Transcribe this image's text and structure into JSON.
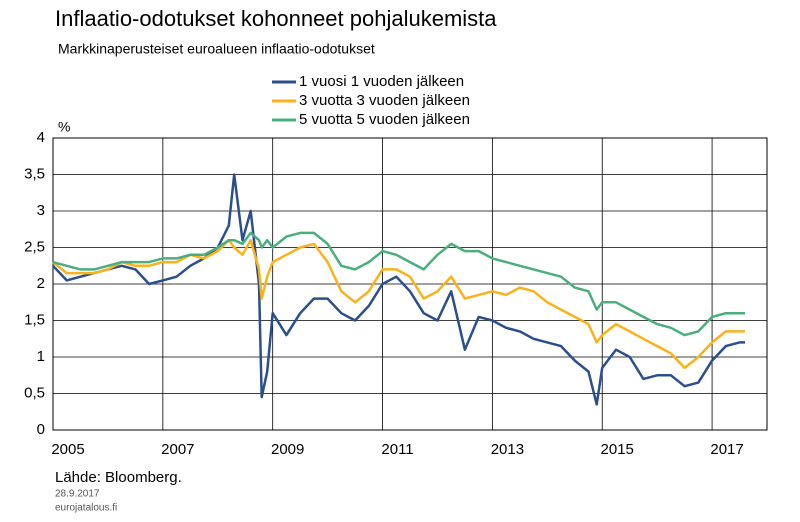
{
  "chart_data": {
    "type": "line",
    "title": "Inflaatio-odotukset kohonneet pohjalukemista",
    "subtitle": "Markkinaperusteiset euroalueen inflaatio-odotukset",
    "y_label": "%",
    "source": "Lähde: Bloomberg.",
    "date": "28.9.2017",
    "site": "eurojatalous.fi",
    "grid": true,
    "xlim": [
      2005,
      2018
    ],
    "xticks": [
      2005,
      2007,
      2009,
      2011,
      2013,
      2015,
      2017
    ],
    "ylim": [
      0,
      4
    ],
    "yticks": [
      0,
      {
        "value": 0.5,
        "label": "0,5"
      },
      1,
      {
        "value": 1.5,
        "label": "1,5"
      },
      2,
      {
        "value": 2.5,
        "label": "2,5"
      },
      3,
      {
        "value": 3.5,
        "label": "3,5"
      },
      4
    ],
    "x": [
      2005,
      2005.25,
      2005.5,
      2005.75,
      2006,
      2006.25,
      2006.5,
      2006.75,
      2007,
      2007.25,
      2007.5,
      2007.75,
      2008,
      2008.2,
      2008.3,
      2008.45,
      2008.6,
      2008.75,
      2008.8,
      2008.9,
      2009,
      2009.25,
      2009.5,
      2009.75,
      2010,
      2010.25,
      2010.5,
      2010.75,
      2011,
      2011.25,
      2011.5,
      2011.75,
      2012,
      2012.25,
      2012.5,
      2012.75,
      2013,
      2013.25,
      2013.5,
      2013.75,
      2014,
      2014.25,
      2014.5,
      2014.75,
      2014.9,
      2015,
      2015.25,
      2015.5,
      2015.75,
      2016,
      2016.25,
      2016.5,
      2016.75,
      2017,
      2017.25,
      2017.5,
      2017.6
    ],
    "series": [
      {
        "name": "1 vuosi 1 vuoden jälkeen",
        "color": "#2b4e8c",
        "values": [
          2.25,
          2.05,
          2.1,
          2.15,
          2.2,
          2.25,
          2.2,
          2.0,
          2.05,
          2.1,
          2.25,
          2.35,
          2.5,
          2.8,
          3.5,
          2.6,
          3.0,
          2.0,
          0.45,
          0.8,
          1.6,
          1.3,
          1.6,
          1.8,
          1.8,
          1.6,
          1.5,
          1.7,
          2.0,
          2.1,
          1.9,
          1.6,
          1.5,
          1.9,
          1.1,
          1.55,
          1.5,
          1.4,
          1.35,
          1.25,
          1.2,
          1.15,
          0.95,
          0.8,
          0.35,
          0.85,
          1.1,
          1.0,
          0.7,
          0.75,
          0.75,
          0.6,
          0.65,
          0.95,
          1.15,
          1.2,
          1.2
        ]
      },
      {
        "name": "3 vuotta 3 vuoden jälkeen",
        "color": "#f9b21b",
        "values": [
          2.3,
          2.15,
          2.15,
          2.15,
          2.2,
          2.3,
          2.25,
          2.25,
          2.3,
          2.3,
          2.4,
          2.35,
          2.45,
          2.6,
          2.5,
          2.4,
          2.6,
          2.2,
          1.8,
          2.1,
          2.3,
          2.4,
          2.5,
          2.55,
          2.3,
          1.9,
          1.75,
          1.9,
          2.2,
          2.2,
          2.1,
          1.8,
          1.9,
          2.1,
          1.8,
          1.85,
          1.9,
          1.85,
          1.95,
          1.9,
          1.75,
          1.65,
          1.55,
          1.45,
          1.2,
          1.3,
          1.45,
          1.35,
          1.25,
          1.15,
          1.05,
          0.85,
          1.0,
          1.2,
          1.35,
          1.35,
          1.35
        ]
      },
      {
        "name": "5 vuotta 5 vuoden jälkeen",
        "color": "#4bae7f",
        "values": [
          2.3,
          2.25,
          2.2,
          2.2,
          2.25,
          2.3,
          2.3,
          2.3,
          2.35,
          2.35,
          2.4,
          2.4,
          2.5,
          2.6,
          2.6,
          2.55,
          2.7,
          2.6,
          2.5,
          2.6,
          2.5,
          2.65,
          2.7,
          2.7,
          2.55,
          2.25,
          2.2,
          2.3,
          2.45,
          2.4,
          2.3,
          2.2,
          2.4,
          2.55,
          2.45,
          2.45,
          2.35,
          2.3,
          2.25,
          2.2,
          2.15,
          2.1,
          1.95,
          1.9,
          1.65,
          1.75,
          1.75,
          1.65,
          1.55,
          1.45,
          1.4,
          1.3,
          1.35,
          1.55,
          1.6,
          1.6,
          1.6
        ]
      }
    ]
  }
}
